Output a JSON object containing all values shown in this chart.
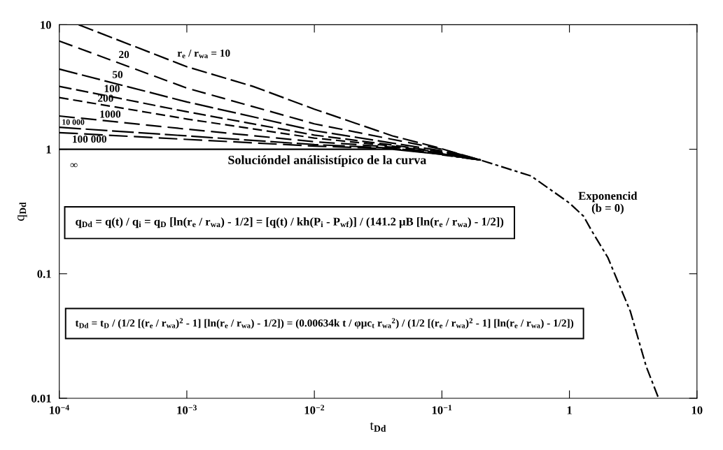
{
  "chart_data": {
    "type": "line",
    "xlabel": "t$_{Dd}$",
    "ylabel": "q$_{Dd}$",
    "log": "xy",
    "grid": false,
    "legend": false,
    "xlim": [
      0.0001,
      10
    ],
    "ylim": [
      0.01,
      10
    ],
    "xticks": [
      {
        "value": 0.0001,
        "label": "10$^{−4}$"
      },
      {
        "value": 0.001,
        "label": "10$^{−3}$"
      },
      {
        "value": 0.01,
        "label": "10$^{−2}$"
      },
      {
        "value": 0.1,
        "label": "10$^{−1}$"
      },
      1,
      10
    ],
    "yticks": [
      0.01,
      0.1,
      1,
      10
    ],
    "series": [
      {
        "name": "r$_{e}$ / r$_{wa}$ = 10",
        "color": "#000000",
        "line_style": "dashed",
        "x": [
          0.000142,
          0.001,
          0.0033,
          0.01,
          0.041,
          0.087,
          0.2
        ],
        "values": [
          10,
          4.6,
          3.2,
          2.1,
          1.28,
          1.05,
          0.82
        ]
      },
      {
        "name": "20",
        "color": "#000000",
        "line_style": "dashed",
        "x": [
          0.0001,
          0.001,
          0.01,
          0.041,
          0.1,
          0.2
        ],
        "values": [
          7.4,
          3.1,
          1.6,
          1.2,
          1.0,
          0.82
        ]
      },
      {
        "name": "50",
        "color": "#000000",
        "line_style": "dashed",
        "x": [
          0.0001,
          0.001,
          0.01,
          0.041,
          0.1,
          0.2
        ],
        "values": [
          4.4,
          2.4,
          1.41,
          1.12,
          0.97,
          0.82
        ]
      },
      {
        "name": "100",
        "color": "#000000",
        "line_style": "dashed",
        "x": [
          0.0001,
          0.001,
          0.01,
          0.041,
          0.1,
          0.2
        ],
        "values": [
          3.2,
          2.0,
          1.3,
          1.08,
          0.95,
          0.82
        ]
      },
      {
        "name": "200",
        "color": "#000000",
        "line_style": "dashed",
        "x": [
          0.0001,
          0.001,
          0.01,
          0.041,
          0.1,
          0.2
        ],
        "values": [
          2.6,
          1.75,
          1.23,
          1.06,
          0.94,
          0.82
        ]
      },
      {
        "name": "1000",
        "color": "#000000",
        "line_style": "dashed",
        "x": [
          0.0001,
          0.001,
          0.01,
          0.041,
          0.1,
          0.2
        ],
        "values": [
          1.85,
          1.45,
          1.15,
          1.04,
          0.93,
          0.82
        ]
      },
      {
        "name": "10 000",
        "color": "#000000",
        "line_style": "dashed",
        "x": [
          0.0001,
          0.001,
          0.01,
          0.041,
          0.1,
          0.2
        ],
        "values": [
          1.5,
          1.28,
          1.09,
          1.02,
          0.92,
          0.82
        ]
      },
      {
        "name": "100 000",
        "color": "#000000",
        "line_style": "dashed",
        "x": [
          0.0001,
          0.001,
          0.01,
          0.041,
          0.1,
          0.2
        ],
        "values": [
          1.36,
          1.2,
          1.06,
          1.01,
          0.91,
          0.82
        ]
      },
      {
        "name": "∞",
        "color": "#000000",
        "line_style": "solid",
        "x": [
          0.0001,
          0.001,
          0.01,
          0.041,
          0.1,
          0.2
        ],
        "values": [
          1.0,
          1.0,
          1.0,
          1.0,
          0.91,
          0.82
        ]
      },
      {
        "name": "Exponencid\n(b = 0)",
        "color": "#000000",
        "line_style": "dashed",
        "x": [
          0.1,
          0.2,
          0.5,
          1,
          1.29,
          1.5,
          2,
          3,
          4,
          5
        ],
        "values": [
          0.9,
          0.82,
          0.61,
          0.37,
          0.29,
          0.22,
          0.135,
          0.05,
          0.018,
          0.01
        ]
      }
    ],
    "annotations": [
      "Solucióndel análisistípico de la curva",
      "q$_{Dd}$ = q(t) / q$_{i}$ = q$_{D}$ [ln(r$_{e}$ / r$_{wa}$) - 1/2] = [q(t) / kh(P$_{i}$ - P$_{wf}$)] / (141.2 μB [ln(r$_{e}$ / r$_{wa}$) - 1/2])",
      "t$_{Dd}$ = t$_{D}$ / (1/2 [(r$_{e}$ / r$_{wa}$)$^{2}$ - 1] [ln(r$_{e}$ / r$_{wa}$) - 1/2]) = (0.00634k t / φμc$_{t}$ r$_{wa}$$^{2}$) / (1/2 [(r$_{e}$ / r$_{wa}$)$^{2}$ - 1] [ln(r$_{e}$ / r$_{wa}$) - 1/2])"
    ]
  }
}
